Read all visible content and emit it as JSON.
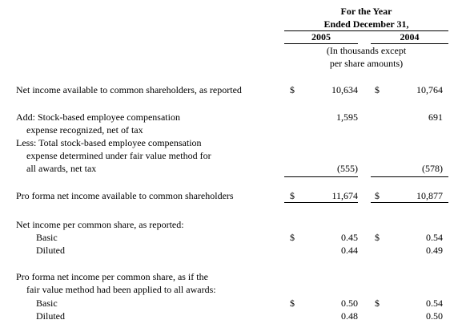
{
  "header": {
    "title_lines": [
      "For the Year",
      "Ended December 31,"
    ],
    "columns": [
      "2005",
      "2004"
    ],
    "note_lines": [
      "(In thousands except",
      "per share amounts)"
    ]
  },
  "table": {
    "rows": [
      {
        "label": [
          "Net income available to common shareholders, as reported"
        ],
        "cells": [
          {
            "currency": "$",
            "value": "10,634"
          },
          {
            "currency": "$",
            "value": "10,764"
          }
        ]
      },
      {
        "label": [
          "Add:  Stock-based employee compensation",
          "expense recognized, net of tax"
        ],
        "cells": [
          {
            "value": "1,595"
          },
          {
            "value": "691"
          }
        ]
      },
      {
        "label": [
          "Less:  Total stock-based employee compensation",
          "expense determined under fair value method for",
          "all awards, net tax"
        ],
        "cells": [
          {
            "value": "(555)"
          },
          {
            "value": "(578)"
          }
        ]
      },
      {
        "label": [
          "Pro forma net income available to common shareholders"
        ],
        "cells": [
          {
            "currency": "$",
            "value": "11,674"
          },
          {
            "currency": "$",
            "value": "10,877"
          }
        ]
      },
      {
        "label": [
          "Net income per common share, as reported:"
        ]
      },
      {
        "label": [
          "Basic"
        ],
        "cells": [
          {
            "currency": "$",
            "value": "0.45"
          },
          {
            "currency": "$",
            "value": "0.54"
          }
        ]
      },
      {
        "label": [
          "Diluted"
        ],
        "cells": [
          {
            "value": "0.44"
          },
          {
            "value": "0.49"
          }
        ]
      },
      {
        "label": [
          "Pro forma net income per common share, as if the",
          "fair value method had been applied to all awards:"
        ]
      },
      {
        "label": [
          "Basic"
        ],
        "cells": [
          {
            "currency": "$",
            "value": "0.50"
          },
          {
            "currency": "$",
            "value": "0.54"
          }
        ]
      },
      {
        "label": [
          "Diluted"
        ],
        "cells": [
          {
            "value": "0.48"
          },
          {
            "value": "0.50"
          }
        ]
      }
    ]
  }
}
